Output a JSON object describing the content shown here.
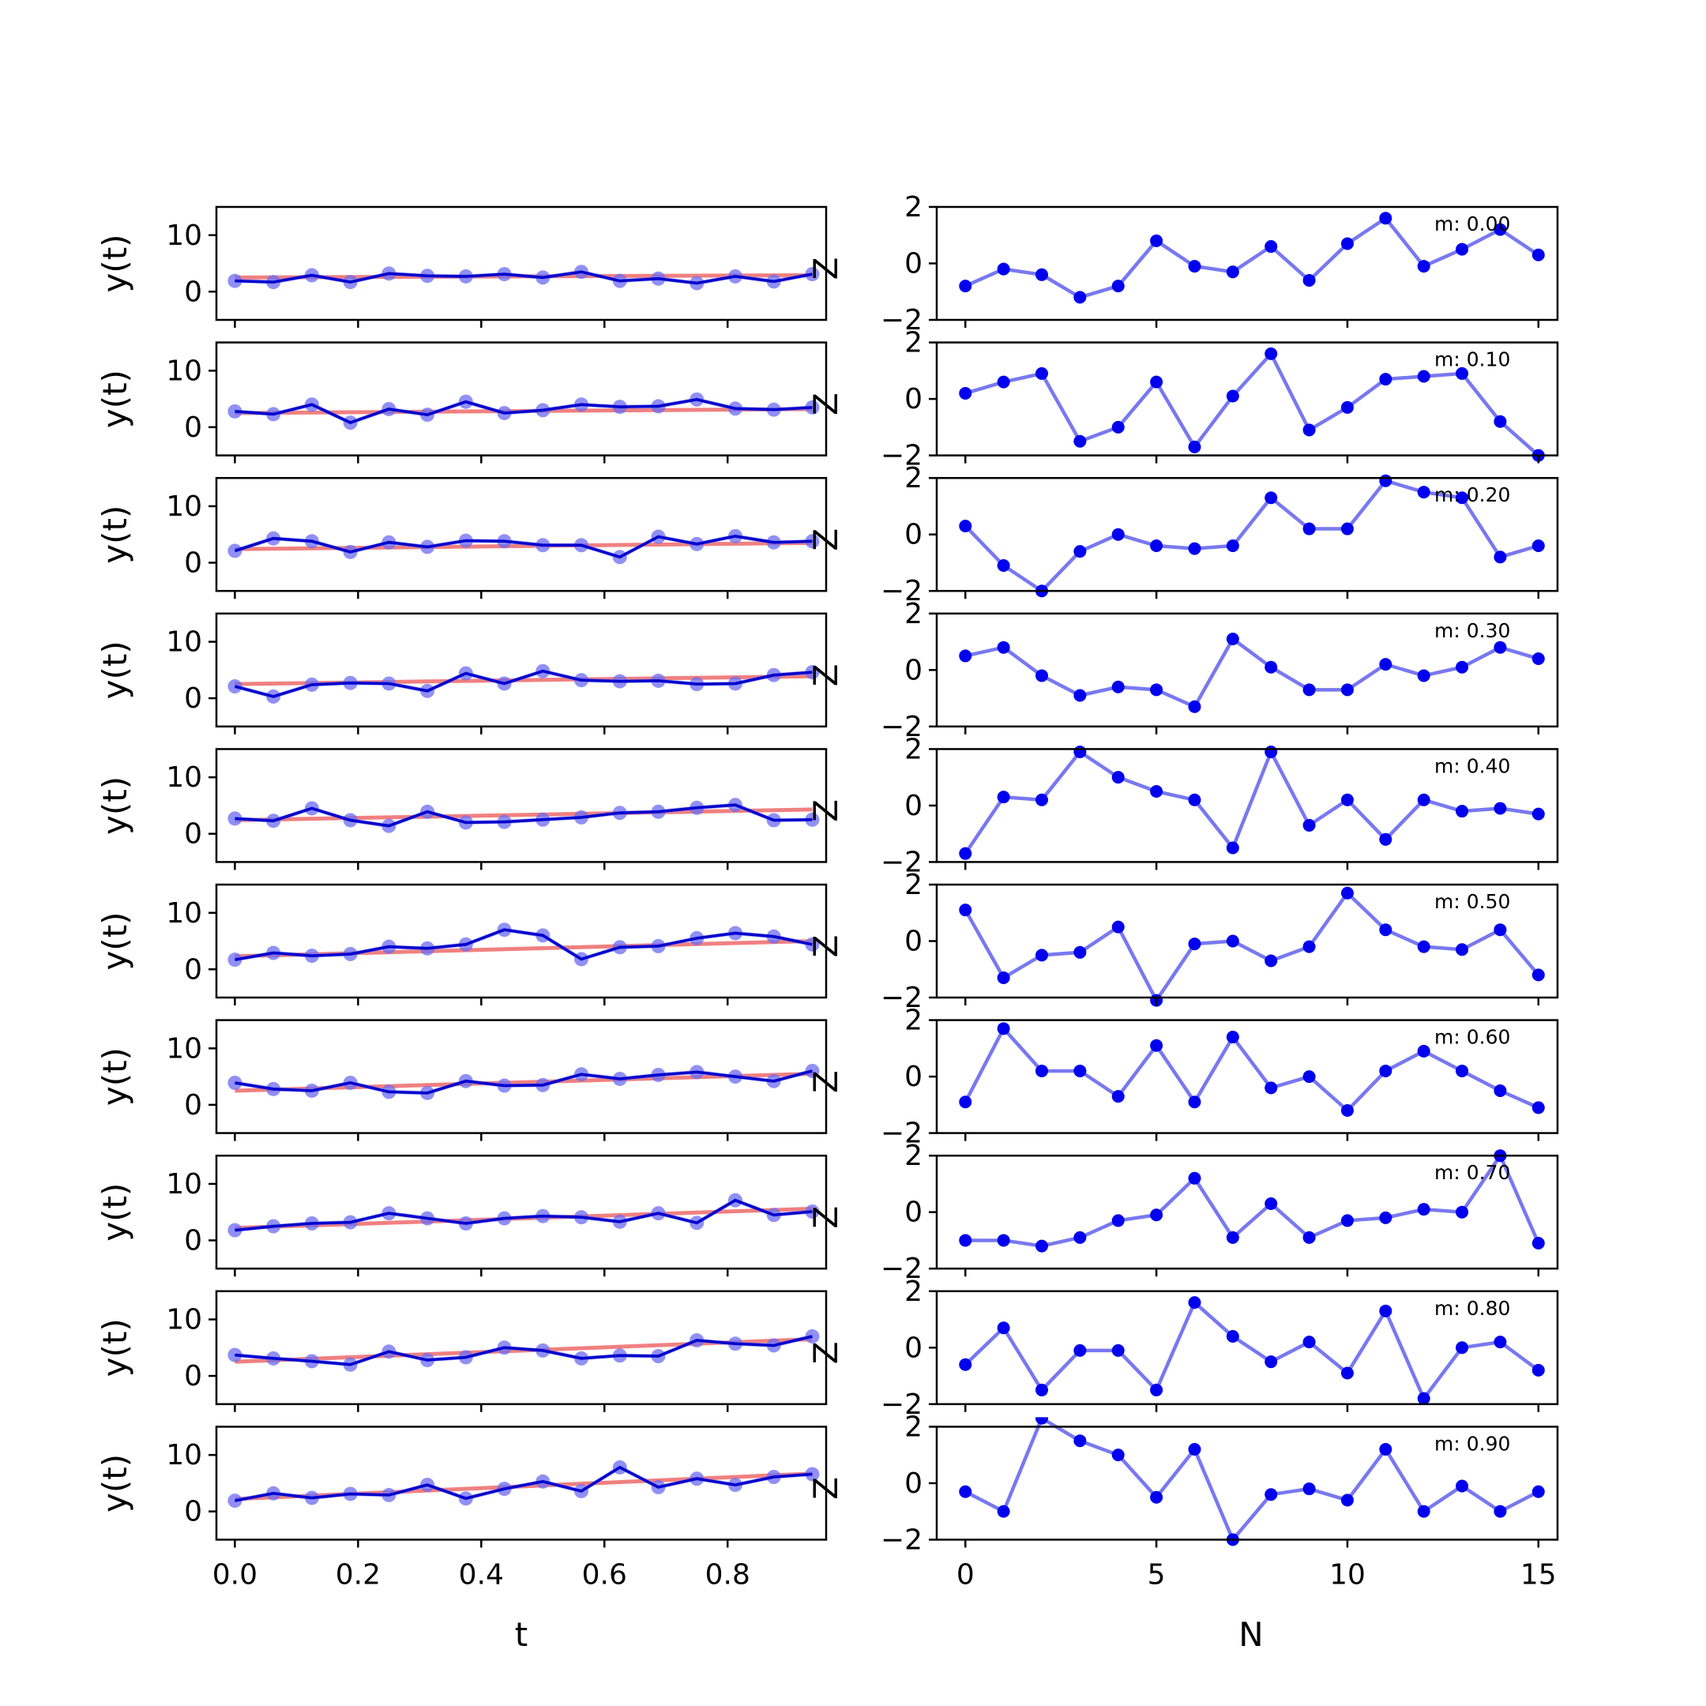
{
  "chart_data": {
    "type": "line",
    "left_panels": {
      "xlabel": "t",
      "ylabel": "y(t)",
      "xlim": [
        -0.03,
        0.96
      ],
      "ylim": [
        -5,
        15
      ],
      "xticks": [
        "0.0",
        "0.2",
        "0.4",
        "0.6",
        "0.8"
      ],
      "xtick_values": [
        0,
        0.2,
        0.4,
        0.6,
        0.8
      ],
      "yticks": [
        "0",
        "10"
      ],
      "ytick_values": [
        0,
        10
      ],
      "x": [
        0,
        0.0625,
        0.125,
        0.1875,
        0.25,
        0.3125,
        0.375,
        0.4375,
        0.5,
        0.5625,
        0.625,
        0.6875,
        0.75,
        0.8125,
        0.875,
        0.9375
      ],
      "observed_color": "#6b6bf2",
      "smoothed_color": "#0000cc",
      "trend_color": "#f08080",
      "panels": [
        {
          "observed": [
            1.9,
            1.7,
            2.9,
            1.7,
            3.2,
            2.8,
            2.7,
            3.1,
            2.5,
            3.5,
            1.9,
            2.3,
            1.5,
            2.7,
            1.8,
            3.1
          ],
          "smoothed": [
            1.9,
            1.7,
            2.9,
            1.7,
            3.2,
            2.8,
            2.7,
            3.1,
            2.5,
            3.5,
            1.9,
            2.3,
            1.5,
            2.7,
            1.8,
            3.1
          ],
          "trend": [
            2.5,
            2.9
          ]
        },
        {
          "observed": [
            2.8,
            2.3,
            4.0,
            0.8,
            3.2,
            2.2,
            4.5,
            2.5,
            3.0,
            4.0,
            3.6,
            3.7,
            4.9,
            3.3,
            3.1,
            3.5
          ],
          "smoothed": [
            2.8,
            2.3,
            4.0,
            0.8,
            3.2,
            2.2,
            4.5,
            2.5,
            3.0,
            4.0,
            3.6,
            3.7,
            4.9,
            3.3,
            3.1,
            3.5
          ],
          "trend": [
            2.5,
            3.2
          ]
        },
        {
          "observed": [
            2.1,
            4.3,
            3.8,
            1.9,
            3.6,
            2.8,
            3.9,
            3.8,
            3.1,
            3.1,
            1.0,
            4.6,
            3.3,
            4.7,
            3.6,
            3.8
          ],
          "smoothed": [
            2.1,
            4.3,
            3.8,
            1.9,
            3.6,
            2.8,
            3.9,
            3.8,
            3.1,
            3.1,
            1.0,
            4.6,
            3.3,
            4.7,
            3.6,
            3.8
          ],
          "trend": [
            2.4,
            3.5
          ]
        },
        {
          "observed": [
            2.1,
            0.3,
            2.4,
            2.7,
            2.6,
            1.3,
            4.4,
            2.6,
            4.8,
            3.2,
            3.0,
            3.1,
            2.5,
            2.6,
            4.1,
            4.6
          ],
          "smoothed": [
            2.1,
            0.3,
            2.4,
            2.7,
            2.6,
            1.3,
            4.4,
            2.6,
            4.8,
            3.2,
            3.0,
            3.1,
            2.5,
            2.6,
            4.1,
            4.6
          ],
          "trend": [
            2.5,
            3.9
          ]
        },
        {
          "observed": [
            2.7,
            2.3,
            4.5,
            2.4,
            1.4,
            3.9,
            2.0,
            2.1,
            2.5,
            2.9,
            3.7,
            3.9,
            4.6,
            5.1,
            2.4,
            2.5
          ],
          "smoothed": [
            2.7,
            2.3,
            4.5,
            2.4,
            1.4,
            3.9,
            2.0,
            2.1,
            2.5,
            2.9,
            3.7,
            3.9,
            4.6,
            5.1,
            2.4,
            2.5
          ],
          "trend": [
            2.4,
            4.3
          ]
        },
        {
          "observed": [
            1.7,
            2.9,
            2.4,
            2.7,
            4.0,
            3.7,
            4.4,
            7.0,
            6.0,
            1.8,
            3.9,
            4.1,
            5.5,
            6.4,
            5.8,
            4.4
          ],
          "smoothed": [
            1.7,
            2.9,
            2.4,
            2.7,
            4.0,
            3.7,
            4.4,
            7.0,
            6.0,
            1.8,
            3.9,
            4.1,
            5.5,
            6.4,
            5.8,
            4.4
          ],
          "trend": [
            2.3,
            5.0
          ]
        },
        {
          "observed": [
            3.9,
            2.8,
            2.5,
            3.9,
            2.3,
            2.1,
            4.2,
            3.4,
            3.5,
            5.4,
            4.6,
            5.3,
            5.8,
            5.0,
            4.2,
            6.0
          ],
          "smoothed": [
            3.9,
            2.8,
            2.5,
            3.9,
            2.3,
            2.1,
            4.2,
            3.4,
            3.5,
            5.4,
            4.6,
            5.3,
            5.8,
            5.0,
            4.2,
            6.0
          ],
          "trend": [
            2.5,
            5.5
          ]
        },
        {
          "observed": [
            1.8,
            2.5,
            3.0,
            3.2,
            4.8,
            3.9,
            3.0,
            3.9,
            4.3,
            4.1,
            3.3,
            4.8,
            3.1,
            7.1,
            4.5,
            5.1
          ],
          "smoothed": [
            1.8,
            2.5,
            3.0,
            3.2,
            4.8,
            3.9,
            3.0,
            3.9,
            4.3,
            4.1,
            3.3,
            4.8,
            3.1,
            7.1,
            4.5,
            5.1
          ],
          "trend": [
            2.2,
            5.6
          ]
        },
        {
          "observed": [
            3.7,
            3.1,
            2.6,
            2.0,
            4.3,
            2.8,
            3.3,
            5.0,
            4.5,
            3.1,
            3.6,
            3.5,
            6.3,
            5.7,
            5.4,
            7.0
          ],
          "smoothed": [
            3.7,
            3.1,
            2.6,
            2.0,
            4.3,
            2.8,
            3.3,
            5.0,
            4.5,
            3.1,
            3.6,
            3.5,
            6.3,
            5.7,
            5.4,
            7.0
          ],
          "trend": [
            2.5,
            6.5
          ]
        },
        {
          "observed": [
            1.9,
            3.2,
            2.4,
            3.1,
            2.9,
            4.7,
            2.3,
            4.0,
            5.3,
            3.6,
            7.8,
            4.3,
            5.8,
            4.7,
            6.1,
            6.6
          ],
          "smoothed": [
            1.9,
            3.2,
            2.4,
            3.1,
            2.9,
            4.7,
            2.3,
            4.0,
            5.3,
            3.6,
            7.8,
            4.3,
            5.8,
            4.7,
            6.1,
            6.6
          ],
          "trend": [
            2.2,
            6.7
          ]
        }
      ]
    },
    "right_panels": {
      "xlabel": "N",
      "ylabel": "",
      "xlim": [
        -0.75,
        15.5
      ],
      "ylim": [
        -2,
        2
      ],
      "xticks": [
        "0",
        "5",
        "10",
        "15"
      ],
      "xtick_values": [
        0,
        5,
        10,
        15
      ],
      "yticks": [
        "−2",
        "0",
        "2"
      ],
      "ytick_values": [
        -2,
        0,
        2
      ],
      "x": [
        0,
        1,
        2,
        3,
        4,
        5,
        6,
        7,
        8,
        9,
        10,
        11,
        12,
        13,
        14,
        15
      ],
      "line_color": "#7878f0",
      "point_color": "#0000ee",
      "panels": [
        {
          "label": "m: 0.00",
          "values": [
            -0.8,
            -0.2,
            -0.4,
            -1.2,
            -0.8,
            0.8,
            -0.1,
            -0.3,
            0.6,
            -0.6,
            0.7,
            1.6,
            -0.1,
            0.5,
            1.2,
            0.3
          ]
        },
        {
          "label": "m: 0.10",
          "values": [
            0.2,
            0.6,
            0.9,
            -1.5,
            -1.0,
            0.6,
            -1.7,
            0.1,
            1.6,
            -1.1,
            -0.3,
            0.7,
            0.8,
            0.9,
            -0.8,
            -2.0
          ]
        },
        {
          "label": "m: 0.20",
          "values": [
            0.3,
            -1.1,
            -2.0,
            -0.6,
            0.0,
            -0.4,
            -0.5,
            -0.4,
            1.3,
            0.2,
            0.2,
            1.9,
            1.5,
            1.3,
            -0.8,
            -0.4
          ]
        },
        {
          "label": "m: 0.30",
          "values": [
            0.5,
            0.8,
            -0.2,
            -0.9,
            -0.6,
            -0.7,
            -1.3,
            1.1,
            0.1,
            -0.7,
            -0.7,
            0.2,
            -0.2,
            0.1,
            0.8,
            0.4
          ]
        },
        {
          "label": "m: 0.40",
          "values": [
            -1.7,
            0.3,
            0.2,
            1.9,
            1.0,
            0.5,
            0.2,
            -1.5,
            1.9,
            -0.7,
            0.2,
            -1.2,
            0.2,
            -0.2,
            -0.1,
            -0.3
          ]
        },
        {
          "label": "m: 0.50",
          "values": [
            1.1,
            -1.3,
            -0.5,
            -0.4,
            0.5,
            -2.1,
            -0.1,
            0.0,
            -0.7,
            -0.2,
            1.7,
            0.4,
            -0.2,
            -0.3,
            0.4,
            -1.2
          ]
        },
        {
          "label": "m: 0.60",
          "values": [
            -0.9,
            1.7,
            0.2,
            0.2,
            -0.7,
            1.1,
            -0.9,
            1.4,
            -0.4,
            0.0,
            -1.2,
            0.2,
            0.9,
            0.2,
            -0.5,
            -1.1
          ]
        },
        {
          "label": "m: 0.70",
          "values": [
            -1.0,
            -1.0,
            -1.2,
            -0.9,
            -0.3,
            -0.1,
            1.2,
            -0.9,
            0.3,
            -0.9,
            -0.3,
            -0.2,
            0.1,
            0.0,
            2.0,
            -1.1
          ]
        },
        {
          "label": "m: 0.80",
          "values": [
            -0.6,
            0.7,
            -1.5,
            -0.1,
            -0.1,
            -1.5,
            1.6,
            0.4,
            -0.5,
            0.2,
            -0.9,
            1.3,
            -1.8,
            0.0,
            0.2,
            -0.8
          ]
        },
        {
          "label": "m: 0.90",
          "values": [
            -0.3,
            -1.0,
            2.3,
            1.5,
            1.0,
            -0.5,
            1.2,
            -2.0,
            -0.4,
            -0.2,
            -0.6,
            1.2,
            -1.0,
            -0.1,
            -1.0,
            -0.3
          ]
        }
      ]
    },
    "right_side_marker": "Z"
  }
}
